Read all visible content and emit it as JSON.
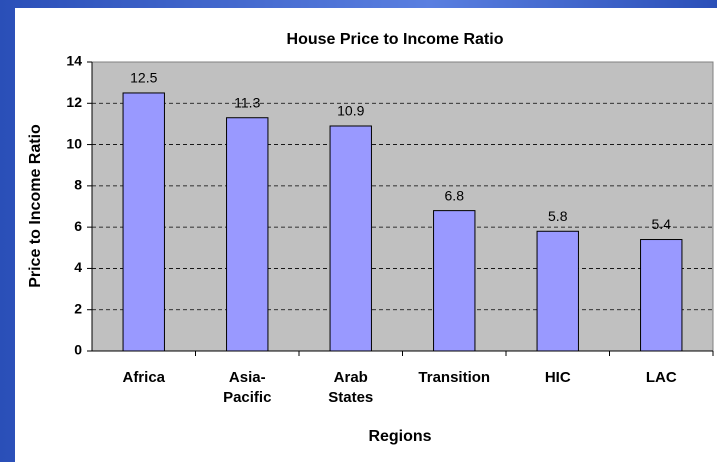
{
  "chart_data": {
    "type": "bar",
    "title": "House Price to Income Ratio",
    "x_label": "Regions",
    "y_label": "Price to Income Ratio",
    "categories": [
      "Africa",
      "Asia-\nPacific",
      "Arab\nStates",
      "Transition",
      "HIC",
      "LAC"
    ],
    "values": [
      12.5,
      11.3,
      10.9,
      6.8,
      5.8,
      5.4
    ],
    "color": "#9999ff",
    "ylim": [
      0,
      14
    ],
    "yticks": [
      0,
      2,
      4,
      6,
      8,
      10,
      12,
      14
    ],
    "grid": true
  }
}
